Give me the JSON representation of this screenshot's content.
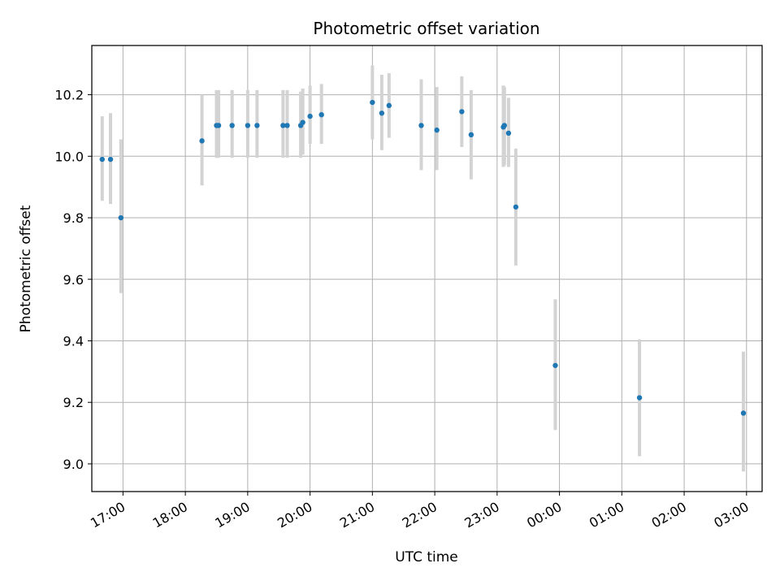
{
  "chart_data": {
    "type": "scatter",
    "title": "Photometric offset variation",
    "xlabel": "UTC time",
    "ylabel": "Photometric offset",
    "x_start": "16:30",
    "x_end": "03:15",
    "xlim_hours": [
      16.5,
      27.25
    ],
    "ylim": [
      8.91,
      10.36
    ],
    "grid": true,
    "x_ticks": [
      {
        "hour": 17,
        "label": "17:00"
      },
      {
        "hour": 18,
        "label": "18:00"
      },
      {
        "hour": 19,
        "label": "19:00"
      },
      {
        "hour": 20,
        "label": "20:00"
      },
      {
        "hour": 21,
        "label": "21:00"
      },
      {
        "hour": 22,
        "label": "22:00"
      },
      {
        "hour": 23,
        "label": "23:00"
      },
      {
        "hour": 24,
        "label": "00:00"
      },
      {
        "hour": 25,
        "label": "01:00"
      },
      {
        "hour": 26,
        "label": "02:00"
      },
      {
        "hour": 27,
        "label": "03:00"
      }
    ],
    "y_ticks": [
      {
        "value": 9.0,
        "label": "9.0"
      },
      {
        "value": 9.2,
        "label": "9.2"
      },
      {
        "value": 9.4,
        "label": "9.4"
      },
      {
        "value": 9.6,
        "label": "9.6"
      },
      {
        "value": 9.8,
        "label": "9.8"
      },
      {
        "value": 10.0,
        "label": "10.0"
      },
      {
        "value": 10.2,
        "label": "10.2"
      }
    ],
    "marker_color": "#1f77b4",
    "errorbar_color": "#d3d3d3",
    "points": [
      {
        "time": "16:40",
        "y": 9.99,
        "err_low": 9.855,
        "err_high": 10.13
      },
      {
        "time": "16:48",
        "y": 9.99,
        "err_low": 9.845,
        "err_high": 10.14
      },
      {
        "time": "16:58",
        "y": 9.8,
        "err_low": 9.555,
        "err_high": 10.055
      },
      {
        "time": "18:16",
        "y": 10.05,
        "err_low": 9.905,
        "err_high": 10.2
      },
      {
        "time": "18:30",
        "y": 10.1,
        "err_low": 9.995,
        "err_high": 10.215
      },
      {
        "time": "18:32",
        "y": 10.1,
        "err_low": 9.995,
        "err_high": 10.215
      },
      {
        "time": "18:45",
        "y": 10.1,
        "err_low": 9.995,
        "err_high": 10.215
      },
      {
        "time": "19:00",
        "y": 10.1,
        "err_low": 9.995,
        "err_high": 10.215
      },
      {
        "time": "19:09",
        "y": 10.1,
        "err_low": 9.995,
        "err_high": 10.215
      },
      {
        "time": "19:34",
        "y": 10.1,
        "err_low": 9.995,
        "err_high": 10.215
      },
      {
        "time": "19:38",
        "y": 10.1,
        "err_low": 9.995,
        "err_high": 10.215
      },
      {
        "time": "19:51",
        "y": 10.1,
        "err_low": 9.995,
        "err_high": 10.21
      },
      {
        "time": "19:53",
        "y": 10.11,
        "err_low": 10.005,
        "err_high": 10.22
      },
      {
        "time": "20:00",
        "y": 10.13,
        "err_low": 10.04,
        "err_high": 10.23
      },
      {
        "time": "20:11",
        "y": 10.135,
        "err_low": 10.04,
        "err_high": 10.235
      },
      {
        "time": "21:00",
        "y": 10.175,
        "err_low": 10.055,
        "err_high": 10.295
      },
      {
        "time": "21:09",
        "y": 10.14,
        "err_low": 10.02,
        "err_high": 10.265
      },
      {
        "time": "21:16",
        "y": 10.165,
        "err_low": 10.06,
        "err_high": 10.27
      },
      {
        "time": "21:47",
        "y": 10.1,
        "err_low": 9.955,
        "err_high": 10.25
      },
      {
        "time": "22:02",
        "y": 10.085,
        "err_low": 9.955,
        "err_high": 10.225
      },
      {
        "time": "22:26",
        "y": 10.145,
        "err_low": 10.03,
        "err_high": 10.26
      },
      {
        "time": "22:35",
        "y": 10.07,
        "err_low": 9.925,
        "err_high": 10.215
      },
      {
        "time": "23:06",
        "y": 10.095,
        "err_low": 9.965,
        "err_high": 10.23
      },
      {
        "time": "23:07",
        "y": 10.1,
        "err_low": 9.97,
        "err_high": 10.225
      },
      {
        "time": "23:11",
        "y": 10.075,
        "err_low": 9.965,
        "err_high": 10.19
      },
      {
        "time": "23:18",
        "y": 9.835,
        "err_low": 9.645,
        "err_high": 10.025
      },
      {
        "time": "23:56",
        "y": 9.32,
        "err_low": 9.11,
        "err_high": 9.535
      },
      {
        "time": "01:17",
        "y": 9.215,
        "err_low": 9.025,
        "err_high": 9.405
      },
      {
        "time": "02:57",
        "y": 9.165,
        "err_low": 8.975,
        "err_high": 9.365
      }
    ]
  }
}
